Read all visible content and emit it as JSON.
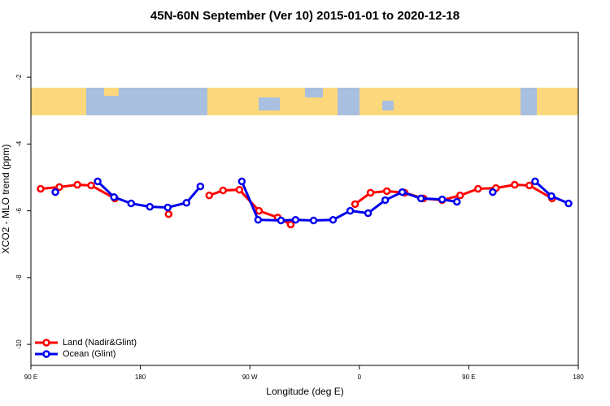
{
  "chart_data": {
    "type": "line",
    "title": "45N-60N September (Ver 10)   2015-01-01 to 2020-12-18",
    "x_label": "Longitude (deg E)",
    "y_label": "XCO2 - MLO trend (ppm)",
    "xlim": [
      90,
      540
    ],
    "xticks": [
      {
        "value": 90,
        "label": "90 E"
      },
      180,
      {
        "value": 270,
        "label": "90 W"
      },
      {
        "value": 360,
        "label": "0"
      },
      {
        "value": 450,
        "label": "90 E"
      },
      {
        "value": 540,
        "label": "180"
      }
    ],
    "ylim": [
      -10.63,
      -0.66
    ],
    "yticks": [
      -2,
      -4,
      -6,
      -8,
      -10
    ],
    "legend": "bottom-left",
    "series": [
      {
        "name": "Land (Nadir&Glint)",
        "color": "#ff0000",
        "x": [
          98.0,
          113.4,
          128.2,
          139.5,
          159.0,
          null,
          203.2,
          null,
          236.6,
          248.0,
          261.4,
          277.5,
          292.9,
          303.6,
          null,
          356.5,
          369.2,
          382.6,
          397.3,
          412.7,
          428.1,
          442.9,
          457.6,
          472.3,
          487.7,
          499.8,
          518.5
        ],
        "values": [
          -5.34,
          -5.29,
          -5.22,
          -5.24,
          -5.63,
          null,
          -6.1,
          null,
          -5.54,
          -5.39,
          -5.37,
          -6.0,
          -6.2,
          -6.41,
          null,
          -5.8,
          -5.46,
          -5.41,
          -5.46,
          -5.63,
          -5.68,
          -5.54,
          -5.34,
          -5.32,
          -5.22,
          -5.24,
          -5.63
        ]
      },
      {
        "name": "Ocean (Glint)",
        "color": "#0000ee",
        "x": [
          110.1,
          null,
          144.9,
          158.3,
          172.4,
          187.8,
          202.5,
          217.9,
          229.3,
          null,
          263.4,
          276.8,
          295.6,
          307.6,
          322.4,
          338.4,
          352.5,
          367.2,
          381.3,
          395.3,
          410.7,
          428.1,
          440.2,
          null,
          469.7,
          null,
          504.5,
          517.9,
          532.0
        ],
        "values": [
          -5.44,
          null,
          -5.12,
          -5.59,
          -5.78,
          -5.88,
          -5.9,
          -5.76,
          -5.27,
          null,
          -5.12,
          -6.27,
          -6.29,
          -6.27,
          -6.29,
          -6.27,
          -6.0,
          -6.07,
          -5.68,
          -5.44,
          -5.63,
          -5.66,
          -5.73,
          null,
          -5.44,
          null,
          -5.12,
          -5.56,
          -5.78
        ]
      }
    ]
  }
}
